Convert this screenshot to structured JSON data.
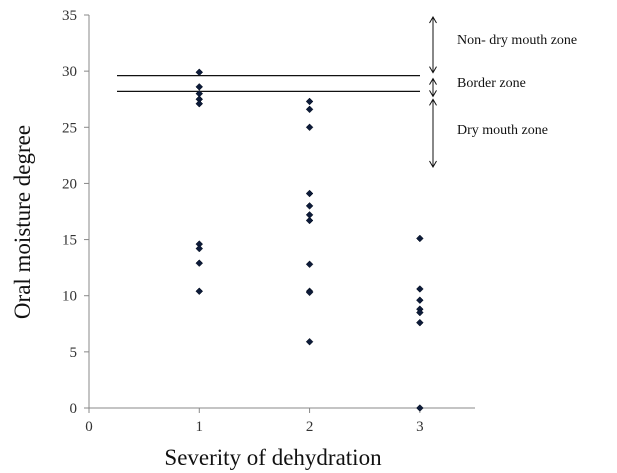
{
  "chart_data": {
    "type": "scatter",
    "title": "",
    "xlabel": "Severity of dehydration",
    "ylabel": "Oral moisture degree",
    "xlim": [
      0,
      3.5
    ],
    "ylim": [
      0,
      35
    ],
    "xticks": [
      "0",
      "1",
      "2",
      "3"
    ],
    "yticks": [
      "0",
      "5",
      "10",
      "15",
      "20",
      "25",
      "30",
      "35"
    ],
    "grid": false,
    "legend": "none",
    "marker_color": "#0d1b3a",
    "points": [
      {
        "x": 1,
        "y": 29.9
      },
      {
        "x": 1,
        "y": 28.6
      },
      {
        "x": 1,
        "y": 28.0
      },
      {
        "x": 1,
        "y": 27.5
      },
      {
        "x": 1,
        "y": 27.1
      },
      {
        "x": 1,
        "y": 14.6
      },
      {
        "x": 1,
        "y": 14.2
      },
      {
        "x": 1,
        "y": 12.9
      },
      {
        "x": 1,
        "y": 10.4
      },
      {
        "x": 2,
        "y": 27.3
      },
      {
        "x": 2,
        "y": 26.6
      },
      {
        "x": 2,
        "y": 25.0
      },
      {
        "x": 2,
        "y": 19.1
      },
      {
        "x": 2,
        "y": 18.0
      },
      {
        "x": 2,
        "y": 17.2
      },
      {
        "x": 2,
        "y": 16.7
      },
      {
        "x": 2,
        "y": 12.8
      },
      {
        "x": 2,
        "y": 10.4
      },
      {
        "x": 2,
        "y": 10.3
      },
      {
        "x": 2,
        "y": 5.9
      },
      {
        "x": 3,
        "y": 15.1
      },
      {
        "x": 3,
        "y": 10.6
      },
      {
        "x": 3,
        "y": 9.6
      },
      {
        "x": 3,
        "y": 8.8
      },
      {
        "x": 3,
        "y": 8.5
      },
      {
        "x": 3,
        "y": 7.6
      },
      {
        "x": 3,
        "y": 0.0
      }
    ],
    "reference_lines": [
      29.6,
      28.2
    ],
    "annotations": {
      "non_dry": "Non- dry mouth zone",
      "border": "Border zone",
      "dry": "Dry mouth zone"
    }
  }
}
